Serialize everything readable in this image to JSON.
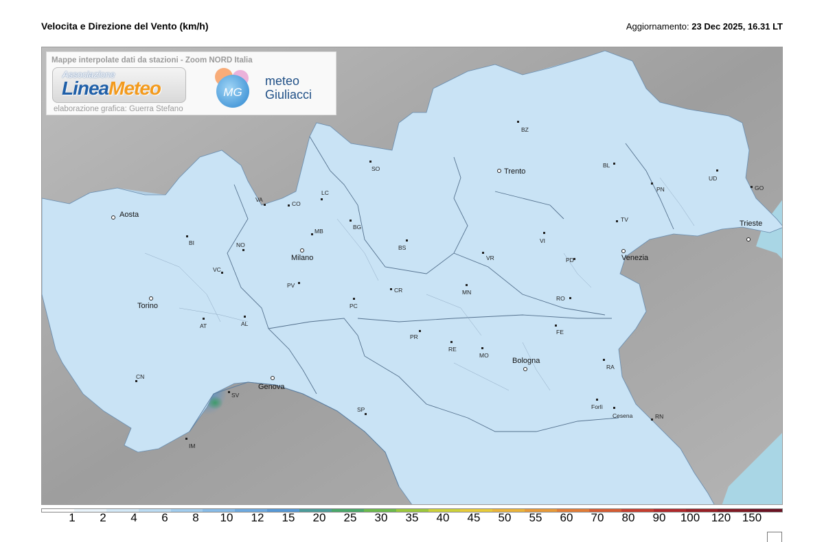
{
  "title": "Velocita e Direzione del Vento  (km/h)",
  "updated_label": "Aggiornamento:",
  "updated_value": "23 Dec 2025, 16.31 LT",
  "info": {
    "header": "Mappe interpolate dati da stazioni - Zoom NORD Italia",
    "logo_assoc": "Associazione",
    "logo_brand_a": "Linea",
    "logo_brand_b": "Meteo",
    "credit": "elaborazione grafica: Guerra Stefano",
    "mg_mark": "MG",
    "mg_line1": "meteo",
    "mg_line2": "Giuliacci"
  },
  "cities": [
    {
      "id": "aosta",
      "label": "Aosta",
      "style": "big"
    },
    {
      "id": "torino",
      "label": "Torino",
      "style": "big"
    },
    {
      "id": "milano",
      "label": "Milano",
      "style": "big"
    },
    {
      "id": "genova",
      "label": "Genova",
      "style": "big"
    },
    {
      "id": "trento",
      "label": "Trento",
      "style": "big"
    },
    {
      "id": "venezia",
      "label": "Venezia",
      "style": "big"
    },
    {
      "id": "bologna",
      "label": "Bologna",
      "style": "big"
    },
    {
      "id": "trieste",
      "label": "Trieste",
      "style": "big"
    },
    {
      "id": "bz",
      "label": "BZ",
      "style": "small"
    },
    {
      "id": "so",
      "label": "SO",
      "style": "small"
    },
    {
      "id": "va",
      "label": "VA",
      "style": "small"
    },
    {
      "id": "co",
      "label": "CO",
      "style": "small"
    },
    {
      "id": "lc",
      "label": "LC",
      "style": "small"
    },
    {
      "id": "bg",
      "label": "BG",
      "style": "small"
    },
    {
      "id": "mb",
      "label": "MB",
      "style": "small"
    },
    {
      "id": "bi",
      "label": "BI",
      "style": "small"
    },
    {
      "id": "no",
      "label": "NO",
      "style": "small"
    },
    {
      "id": "vc",
      "label": "VC",
      "style": "small"
    },
    {
      "id": "pv",
      "label": "PV",
      "style": "small"
    },
    {
      "id": "bs",
      "label": "BS",
      "style": "small"
    },
    {
      "id": "bl",
      "label": "BL",
      "style": "small"
    },
    {
      "id": "pn",
      "label": "PN",
      "style": "small"
    },
    {
      "id": "ud",
      "label": "UD",
      "style": "small"
    },
    {
      "id": "go",
      "label": "GO",
      "style": "small"
    },
    {
      "id": "tv",
      "label": "TV",
      "style": "small"
    },
    {
      "id": "vi",
      "label": "VI",
      "style": "small"
    },
    {
      "id": "vr",
      "label": "VR",
      "style": "small"
    },
    {
      "id": "pd",
      "label": "PD",
      "style": "small"
    },
    {
      "id": "ro",
      "label": "RO",
      "style": "small"
    },
    {
      "id": "mn",
      "label": "MN",
      "style": "small"
    },
    {
      "id": "cr",
      "label": "CR",
      "style": "small"
    },
    {
      "id": "pc",
      "label": "PC",
      "style": "small"
    },
    {
      "id": "at",
      "label": "AT",
      "style": "small"
    },
    {
      "id": "al",
      "label": "AL",
      "style": "small"
    },
    {
      "id": "pr",
      "label": "PR",
      "style": "small"
    },
    {
      "id": "re",
      "label": "RE",
      "style": "small"
    },
    {
      "id": "mo",
      "label": "MO",
      "style": "small"
    },
    {
      "id": "fe",
      "label": "FE",
      "style": "small"
    },
    {
      "id": "ra",
      "label": "RA",
      "style": "small"
    },
    {
      "id": "forli",
      "label": "Forlì",
      "style": "small"
    },
    {
      "id": "cesena",
      "label": "Cesena",
      "style": "small"
    },
    {
      "id": "rn",
      "label": "RN",
      "style": "small"
    },
    {
      "id": "cn",
      "label": "CN",
      "style": "small"
    },
    {
      "id": "sv",
      "label": "SV",
      "style": "small"
    },
    {
      "id": "im",
      "label": "IM",
      "style": "small"
    },
    {
      "id": "sp",
      "label": "SP",
      "style": "small"
    }
  ],
  "legend": {
    "labels": [
      "1",
      "2",
      "4",
      "6",
      "8",
      "10",
      "12",
      "15",
      "20",
      "25",
      "30",
      "35",
      "40",
      "45",
      "50",
      "55",
      "60",
      "70",
      "80",
      "90",
      "100",
      "120",
      "150"
    ],
    "colors": [
      "#ffffff",
      "#eaf4fb",
      "#d4e9f7",
      "#bcdcf3",
      "#a2cdee",
      "#88bce8",
      "#6eaae0",
      "#5799d6",
      "#4c9c9a",
      "#4aa86a",
      "#6cba4c",
      "#9cc83c",
      "#cdd23a",
      "#e8cc3a",
      "#ebb43a",
      "#e89a38",
      "#e27c36",
      "#d65c33",
      "#c63e2f",
      "#b0282b",
      "#982026",
      "#801a24",
      "#6b1222"
    ]
  }
}
